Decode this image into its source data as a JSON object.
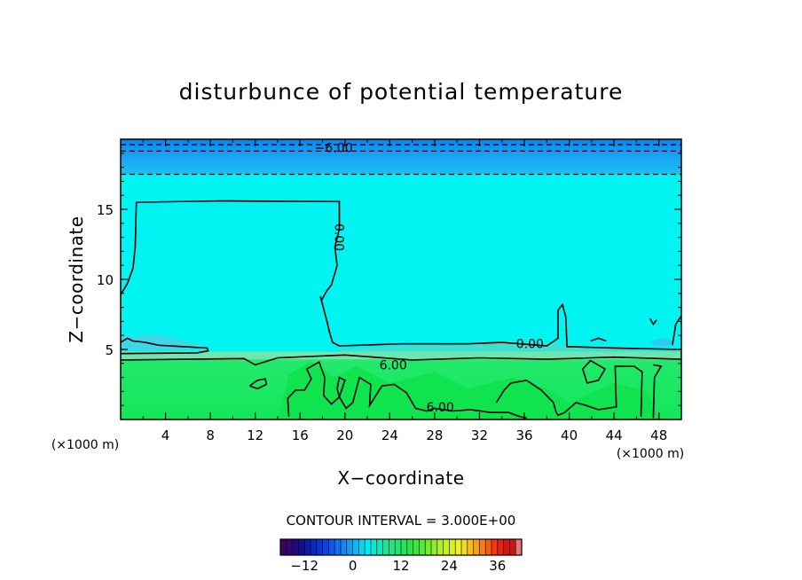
{
  "chart_data": {
    "type": "heatmap",
    "title": "disturbunce of potential temperature",
    "xlabel": "X−coordinate",
    "ylabel": "Z−coordinate",
    "x_unit": "(×1000 m)",
    "y_unit": "(×1000 m)",
    "xlim": [
      0,
      50
    ],
    "ylim": [
      0,
      20
    ],
    "x_ticks": [
      4,
      8,
      12,
      16,
      20,
      24,
      28,
      32,
      36,
      40,
      44,
      48
    ],
    "y_ticks": [
      5,
      10,
      15
    ],
    "contour_interval_label": "CONTOUR INTERVAL = 3.000E+00",
    "contour_labels": [
      {
        "text": "−6.00",
        "x": 19,
        "z": 19.4
      },
      {
        "text": "0.00",
        "x": 19.5,
        "z": 13
      },
      {
        "text": "0.00",
        "x": 36.5,
        "z": 5.4
      },
      {
        "text": "6.00",
        "x": 24.3,
        "z": 3.9
      },
      {
        "text": "6.00",
        "x": 28.5,
        "z": 0.9
      }
    ],
    "colorbar": {
      "range": [
        -18,
        42
      ],
      "tick_values": [
        -12,
        0,
        12,
        24,
        36
      ],
      "tick_labels": [
        "−12",
        "0",
        "12",
        "24",
        "36"
      ]
    },
    "field_regions": [
      {
        "name": "upper-negative",
        "z_range": [
          17.5,
          20
        ],
        "value": -3
      },
      {
        "name": "near-zero",
        "z_range": [
          4.8,
          17.5
        ],
        "value": 0
      },
      {
        "name": "lower-positive",
        "z_range": [
          0,
          4.8
        ],
        "value": 6
      }
    ]
  }
}
